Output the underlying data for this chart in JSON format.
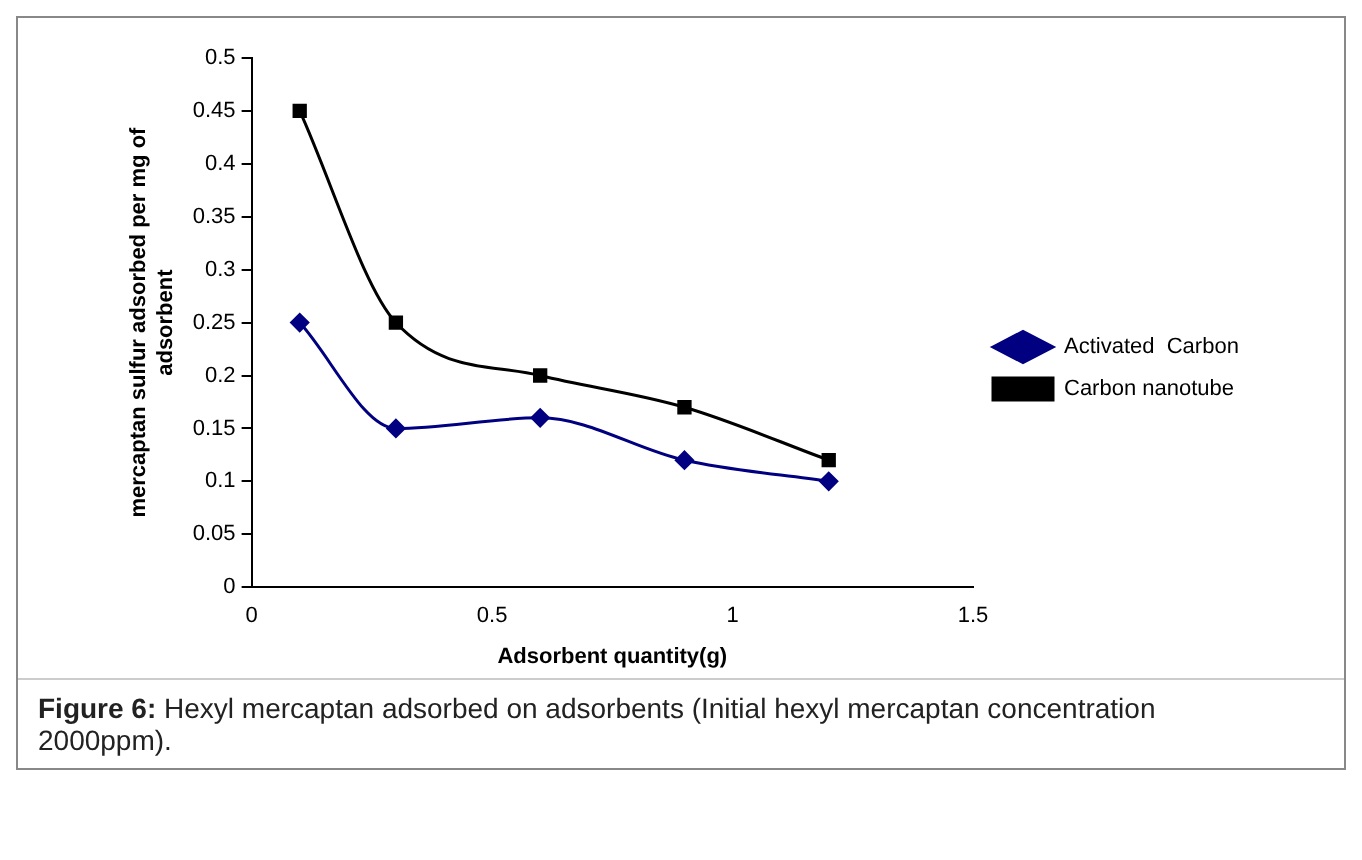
{
  "chart_data": {
    "type": "line",
    "xlabel": "Adsorbent quantity(g)",
    "ylabel": "mercaptan sulfur adsorbed per mg of adsorbent",
    "x": [
      0.1,
      0.3,
      0.6,
      0.9,
      1.2
    ],
    "series": [
      {
        "name": "Activated  Carbon",
        "color": "#000080",
        "marker": "diamond",
        "values": [
          0.25,
          0.15,
          0.16,
          0.12,
          0.1
        ]
      },
      {
        "name": "Carbon nanotube",
        "color": "#000000",
        "marker": "square",
        "values": [
          0.45,
          0.25,
          0.2,
          0.17,
          0.12
        ]
      }
    ],
    "xlim": [
      0,
      1.5
    ],
    "xticks": [
      0,
      0.5,
      1,
      1.5
    ],
    "ylim": [
      0,
      0.5
    ],
    "yticks": [
      0,
      0.05,
      0.1,
      0.15,
      0.2,
      0.25,
      0.3,
      0.35,
      0.4,
      0.45,
      0.5
    ],
    "grid": false,
    "legend": "right",
    "annotations": [
      "Figure 6: Hexyl mercaptan adsorbed on adsorbents (Initial hexyl mercaptan concentration 2000ppm)."
    ]
  }
}
